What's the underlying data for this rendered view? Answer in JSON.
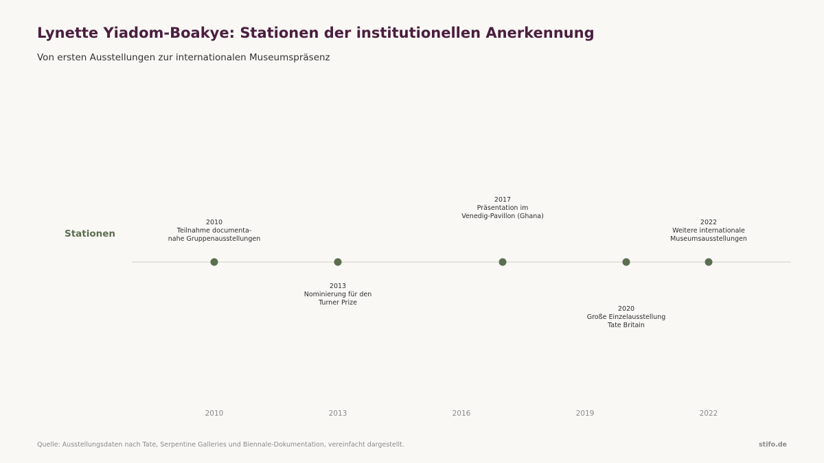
{
  "header": {
    "title": "Lynette Yiadom-Boakye: Stationen der institutionellen Anerkennung",
    "subtitle": "Von ersten Ausstellungen zur internationalen Museumspräsenz"
  },
  "footer": {
    "source": "Quelle: Ausstellungsdaten nach Tate, Serpentine Galleries und Biennale-Dokumentation, vereinfacht dargestellt.",
    "brand": "stifo.de"
  },
  "colors": {
    "background": "#f9f8f5",
    "title": "#4a1e3e",
    "point": "#5b6e50",
    "row_label": "#5b6e50",
    "baseline": "#dcdbd2",
    "annotation": "#2b2b2b",
    "tick_label": "#8a8a8a"
  },
  "chart_data": {
    "type": "scatter",
    "row_label": "Stationen",
    "xlim": [
      2008,
      2024
    ],
    "x_ticks": [
      2010,
      2013,
      2016,
      2019,
      2022
    ],
    "grid": false,
    "events": [
      {
        "x": 2010,
        "position": "above",
        "label_lines": [
          "2010",
          "Teilnahme documenta-",
          "nahe Gruppenausstellungen"
        ]
      },
      {
        "x": 2013,
        "position": "below",
        "label_lines": [
          "2013",
          "Nominierung für den",
          "Turner Prize"
        ]
      },
      {
        "x": 2017,
        "position": "above",
        "label_lines": [
          "2017",
          "Präsentation im",
          "Venedig-Pavillon (Ghana)"
        ]
      },
      {
        "x": 2020,
        "position": "below",
        "label_lines": [
          "2020",
          "Große Einzelausstellung",
          "Tate Britain"
        ]
      },
      {
        "x": 2022,
        "position": "above",
        "label_lines": [
          "2022",
          "Weitere internationale",
          "Museumsausstellungen"
        ]
      }
    ]
  }
}
